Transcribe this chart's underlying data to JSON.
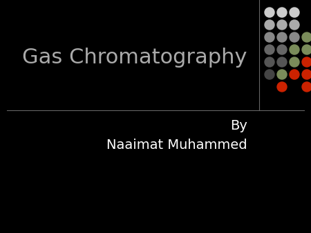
{
  "background_color": "#000000",
  "title_text": "Gas Chromatography",
  "title_color": "#aaaaaa",
  "title_fontsize": 22,
  "subtitle1": "By",
  "subtitle2": "Naaimat Muhammed",
  "subtitle_color": "#ffffff",
  "subtitle_fontsize": 14,
  "divider_color": "#666666",
  "dot_grid": {
    "colors": [
      [
        "#cccccc",
        "#cccccc",
        "#cccccc",
        "none"
      ],
      [
        "#aaaaaa",
        "#aaaaaa",
        "#aaaaaa",
        "none"
      ],
      [
        "#888888",
        "#888888",
        "#888888",
        "#7a8c5a"
      ],
      [
        "#666666",
        "#666666",
        "#7a8c5a",
        "#7a8c5a"
      ],
      [
        "#555555",
        "#555555",
        "#7a8c5a",
        "#cc2200"
      ],
      [
        "#444444",
        "#7a8c5a",
        "#cc2200",
        "#cc2200"
      ],
      [
        "none",
        "#cc2200",
        "none",
        "#cc2200"
      ]
    ]
  }
}
